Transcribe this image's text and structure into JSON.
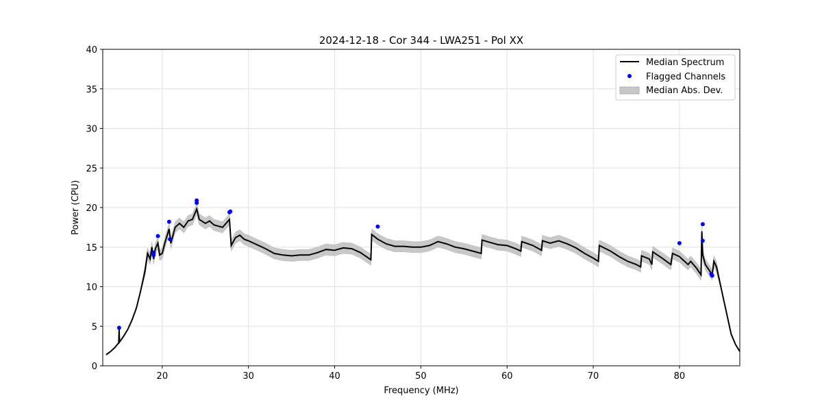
{
  "chart_data": {
    "type": "line",
    "title": "2024-12-18 - Cor 344 - LWA251 - Pol XX",
    "xlabel": "Frequency (MHz)",
    "ylabel": "Power (CPU)",
    "xlim": [
      13.1,
      87.0
    ],
    "ylim": [
      0,
      40
    ],
    "xticks": [
      20,
      30,
      40,
      50,
      60,
      70,
      80
    ],
    "yticks": [
      0,
      5,
      10,
      15,
      20,
      25,
      30,
      35,
      40
    ],
    "grid": true,
    "legend_position": "top-right",
    "legend": [
      "Median Spectrum",
      "Flagged Channels",
      "Median Abs. Dev."
    ],
    "colors": {
      "median": "#000000",
      "flagged": "#0000ff",
      "mad": "#c8c8c8"
    },
    "median_spectrum": {
      "x": [
        13.5,
        14,
        14.5,
        14.95,
        15.0,
        15.05,
        15.5,
        16,
        16.5,
        17,
        17.5,
        18,
        18.3,
        18.6,
        18.8,
        19,
        19.2,
        19.5,
        19.7,
        20,
        20.3,
        20.8,
        21,
        21.5,
        22,
        22.5,
        23,
        23.5,
        24,
        24.3,
        25,
        25.5,
        26,
        27,
        27.8,
        28,
        28.5,
        29,
        29.5,
        30,
        31,
        32,
        33,
        34,
        35,
        36,
        37,
        38,
        39,
        40,
        41,
        42,
        43,
        44.2,
        44.3,
        45,
        46,
        47,
        48,
        49,
        50,
        51,
        52,
        53,
        54,
        55,
        56,
        57,
        57.1,
        58,
        59,
        60,
        61,
        61.6,
        61.7,
        63,
        64,
        64.1,
        65,
        66,
        67,
        68,
        69,
        70,
        70.6,
        70.7,
        72,
        73,
        74,
        75,
        75.5,
        75.6,
        76.5,
        76.8,
        76.9,
        78,
        79,
        79.2,
        80,
        81,
        81.3,
        82,
        82.5,
        82.6,
        82.7,
        83,
        83.5,
        83.8,
        84,
        84.3,
        85,
        85.5,
        86,
        86.5,
        87
      ],
      "y": [
        1.4,
        1.8,
        2.3,
        2.9,
        4.6,
        3.0,
        3.7,
        4.6,
        5.8,
        7.3,
        9.5,
        12,
        14.2,
        13.5,
        15,
        13.5,
        14.8,
        15.5,
        14,
        14.2,
        15.5,
        17.3,
        15.5,
        17.5,
        18,
        17.5,
        18.3,
        18.5,
        19.8,
        18.5,
        18,
        18.3,
        17.8,
        17.5,
        18.5,
        15.2,
        16.2,
        16.5,
        16,
        15.8,
        15.3,
        14.8,
        14.2,
        14,
        13.9,
        14,
        14,
        14.3,
        14.7,
        14.6,
        14.9,
        14.8,
        14.3,
        13.4,
        16.6,
        16,
        15.4,
        15.1,
        15.1,
        15,
        15,
        15.2,
        15.7,
        15.4,
        15,
        14.8,
        14.5,
        14.2,
        15.9,
        15.6,
        15.3,
        15.2,
        14.8,
        14.5,
        15.7,
        15.2,
        14.6,
        15.8,
        15.5,
        15.8,
        15.4,
        14.9,
        14.2,
        13.6,
        13.2,
        15.2,
        14.5,
        13.8,
        13.2,
        12.8,
        12.5,
        13.9,
        13.5,
        12.8,
        14.4,
        13.6,
        12.8,
        14.2,
        13.8,
        12.8,
        13.2,
        12.3,
        11.5,
        17.0,
        14.0,
        12.8,
        12,
        11.5,
        13.2,
        12.5,
        9,
        6.5,
        4,
        2.7,
        1.8
      ]
    },
    "mad_bands": [
      {
        "from": 18,
        "to": 84.5,
        "value": 0.7
      }
    ],
    "mad_default": 0.05,
    "flagged_channels": {
      "x": [
        15.0,
        19.0,
        19.0,
        19.5,
        20.8,
        20.9,
        24.0,
        24.0,
        27.8,
        27.9,
        45.0,
        80.0,
        82.7,
        82.7,
        83.7,
        83.8
      ],
      "y": [
        4.8,
        14.0,
        14.3,
        16.4,
        18.2,
        16.0,
        20.9,
        20.6,
        19.4,
        19.5,
        17.6,
        15.5,
        17.9,
        15.8,
        11.6,
        11.4
      ]
    }
  }
}
